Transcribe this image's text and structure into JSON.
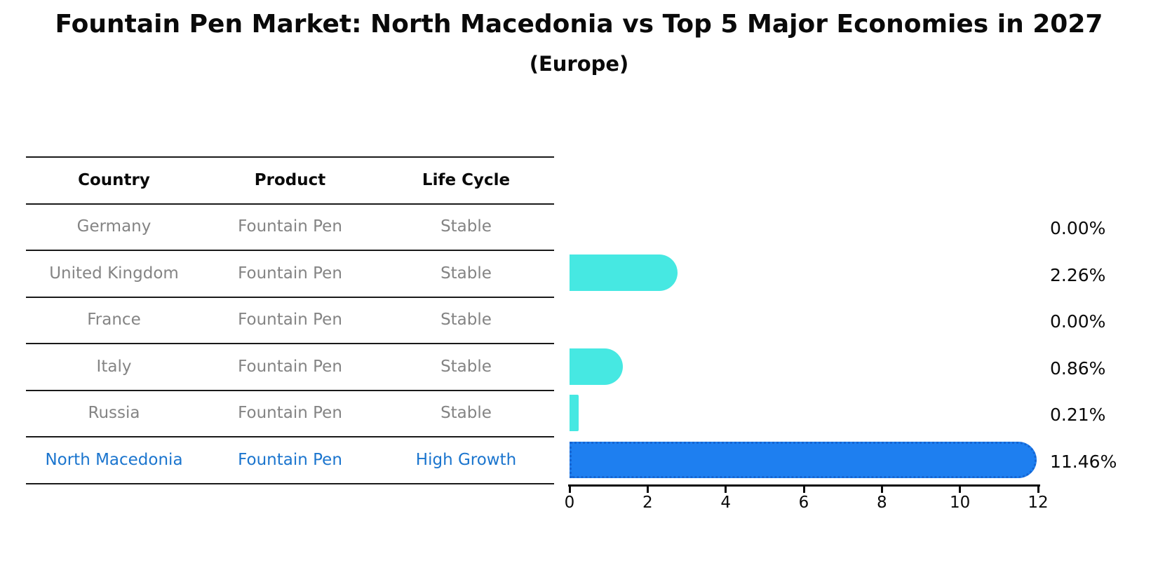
{
  "header": {
    "title": "Fountain Pen Market: North Macedonia vs Top 5 Major Economies in 2027",
    "subtitle": "(Europe)"
  },
  "table": {
    "columns": [
      "Country",
      "Product",
      "Life Cycle"
    ],
    "highlight_text_color": "#1B75CE",
    "rows": [
      {
        "country": "Germany",
        "product": "Fountain Pen",
        "life_cycle": "Stable",
        "highlight": false
      },
      {
        "country": "United Kingdom",
        "product": "Fountain Pen",
        "life_cycle": "Stable",
        "highlight": false
      },
      {
        "country": "France",
        "product": "Fountain Pen",
        "life_cycle": "Stable",
        "highlight": false
      },
      {
        "country": "Italy",
        "product": "Fountain Pen",
        "life_cycle": "Stable",
        "highlight": false
      },
      {
        "country": "Russia",
        "product": "Fountain Pen",
        "life_cycle": "Stable",
        "highlight": false
      },
      {
        "country": "North Macedonia",
        "product": "Fountain Pen",
        "life_cycle": "High Growth",
        "highlight": true
      }
    ]
  },
  "chart_data": {
    "type": "bar",
    "orientation": "horizontal",
    "title": "Fountain Pen Market: North Macedonia vs Top 5 Major Economies in 2027",
    "subtitle": "(Europe)",
    "categories": [
      "Germany",
      "United Kingdom",
      "France",
      "Italy",
      "Russia",
      "North Macedonia"
    ],
    "values": [
      0.0,
      2.26,
      0.0,
      0.86,
      0.21,
      11.46
    ],
    "value_labels": [
      "0.00%",
      "2.26%",
      "0.00%",
      "0.86%",
      "0.21%",
      "11.46%"
    ],
    "xlim": [
      0,
      12
    ],
    "x_ticks": [
      "0",
      "2",
      "4",
      "6",
      "8",
      "10",
      "12"
    ],
    "grid": false,
    "legend": false,
    "bar_color": "#46E8E2",
    "highlight_index": 5,
    "highlight_color": "#1E7FF0",
    "highlight_border_color": "#1565D2"
  }
}
